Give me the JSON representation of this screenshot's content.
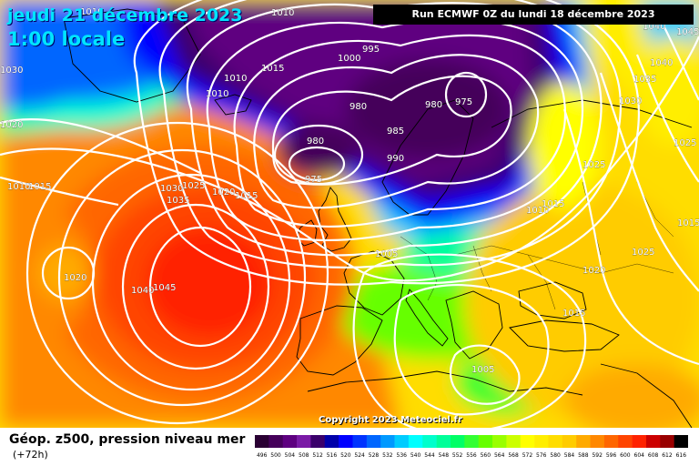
{
  "header": {
    "date": "jeudi 21 décembre 2023",
    "local_time": "1:00 locale",
    "run_info": "Run ECMWF 0Z du lundi 18 décembre 2023"
  },
  "copyright": "Copyright 2023 Meteociel.fr",
  "footer": {
    "label": "Géop. z500, pression niveau mer",
    "forecast_hour": "(+72h)"
  },
  "colors": {
    "title_text": "#00e5ff",
    "run_box_bg": "#000000",
    "isobar_line": "#ffffff",
    "coastline": "#000000"
  },
  "legend": {
    "scale_values": [
      "496",
      "500",
      "504",
      "508",
      "512",
      "516",
      "520",
      "524",
      "528",
      "532",
      "536",
      "540",
      "544",
      "548",
      "552",
      "556",
      "560",
      "564",
      "568",
      "572",
      "576",
      "580",
      "584",
      "588",
      "592",
      "596",
      "600",
      "604",
      "608",
      "612",
      "616"
    ],
    "scale_colors": [
      "#2a0033",
      "#45005a",
      "#5e0080",
      "#7a1aa6",
      "#3a006b",
      "#0000aa",
      "#0000ff",
      "#0033ff",
      "#0066ff",
      "#0099ff",
      "#00ccff",
      "#00ffff",
      "#00ffcc",
      "#00ff99",
      "#00ff66",
      "#33ff33",
      "#66ff00",
      "#99ff00",
      "#ccff00",
      "#ffff00",
      "#ffee00",
      "#ffdd00",
      "#ffcc00",
      "#ffaa00",
      "#ff8800",
      "#ff6600",
      "#ff4400",
      "#ff2200",
      "#cc0000",
      "#990000",
      "#000000"
    ]
  },
  "isobars": {
    "labels": [
      {
        "id": "p1010a",
        "text": "1010"
      },
      {
        "id": "p1010b",
        "text": "1010"
      },
      {
        "id": "p1010c",
        "text": "1010"
      },
      {
        "id": "p1010d",
        "text": "1010"
      },
      {
        "id": "p1015a",
        "text": "1015"
      },
      {
        "id": "p995",
        "text": "995"
      },
      {
        "id": "p1000",
        "text": "1000"
      },
      {
        "id": "p980a",
        "text": "980"
      },
      {
        "id": "p980b",
        "text": "980"
      },
      {
        "id": "p975a",
        "text": "975"
      },
      {
        "id": "p985",
        "text": "985"
      },
      {
        "id": "p980c",
        "text": "980"
      },
      {
        "id": "p975b",
        "text": "975"
      },
      {
        "id": "p990",
        "text": "990"
      },
      {
        "id": "p1030a",
        "text": "1030"
      },
      {
        "id": "p1020a",
        "text": "1020"
      },
      {
        "id": "p1015b",
        "text": "1015"
      },
      {
        "id": "p1010e",
        "text": "1010"
      },
      {
        "id": "p1015c",
        "text": "1015"
      },
      {
        "id": "p1030b",
        "text": "1030"
      },
      {
        "id": "p1025a",
        "text": "1025"
      },
      {
        "id": "p1035",
        "text": "1035"
      },
      {
        "id": "p1020b",
        "text": "1020"
      },
      {
        "id": "p1015d",
        "text": "1015"
      },
      {
        "id": "p1020c",
        "text": "1020"
      },
      {
        "id": "p1040a",
        "text": "1040"
      },
      {
        "id": "p1045",
        "text": "1045"
      },
      {
        "id": "p1005a",
        "text": "1005"
      },
      {
        "id": "p1005b",
        "text": "1005"
      },
      {
        "id": "p1010f",
        "text": "1010"
      },
      {
        "id": "p1015e",
        "text": "1015"
      },
      {
        "id": "p1020d",
        "text": "1020"
      },
      {
        "id": "p1025b",
        "text": "1025"
      },
      {
        "id": "p1025c",
        "text": "1025"
      },
      {
        "id": "p1015f",
        "text": "1015"
      },
      {
        "id": "p1040b",
        "text": "1040"
      },
      {
        "id": "p1035b",
        "text": "1035"
      },
      {
        "id": "p1030c",
        "text": "1030"
      },
      {
        "id": "p1025d",
        "text": "1025"
      },
      {
        "id": "p1040c",
        "text": "1040"
      },
      {
        "id": "p1045b",
        "text": "1045"
      }
    ]
  }
}
